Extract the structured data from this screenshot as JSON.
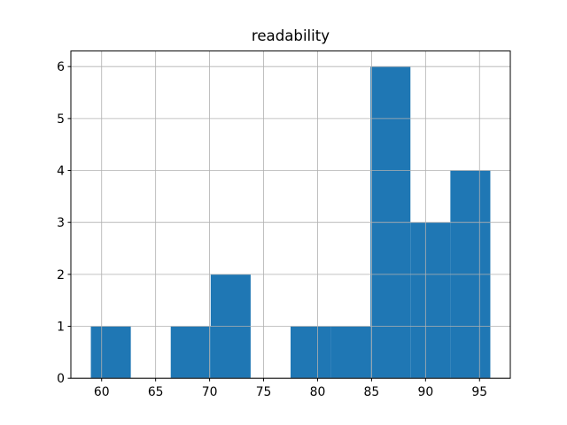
{
  "figure": {
    "background_color": "#ffffff"
  },
  "chart_data": {
    "type": "bar",
    "subtype": "histogram",
    "title": "readability",
    "xlabel": "",
    "ylabel": "",
    "bin_edges": [
      59.0,
      62.7,
      66.4,
      70.1,
      73.8,
      77.5,
      81.2,
      84.9,
      88.6,
      92.3,
      96.0
    ],
    "counts": [
      1,
      0,
      1,
      2,
      0,
      1,
      1,
      6,
      3,
      4
    ],
    "xticks": [
      60,
      65,
      70,
      75,
      80,
      85,
      90,
      95
    ],
    "yticks": [
      0,
      1,
      2,
      3,
      4,
      5,
      6
    ],
    "xlim": [
      57.15,
      97.85
    ],
    "ylim": [
      0,
      6.3
    ],
    "grid": true,
    "grid_above_bars": true,
    "legend_position": "none",
    "bar_color": "#1f77b4",
    "grid_color": "#b0b0b0",
    "spine_color": "#000000",
    "tick_label_color": "#000000",
    "title_color": "#000000"
  }
}
